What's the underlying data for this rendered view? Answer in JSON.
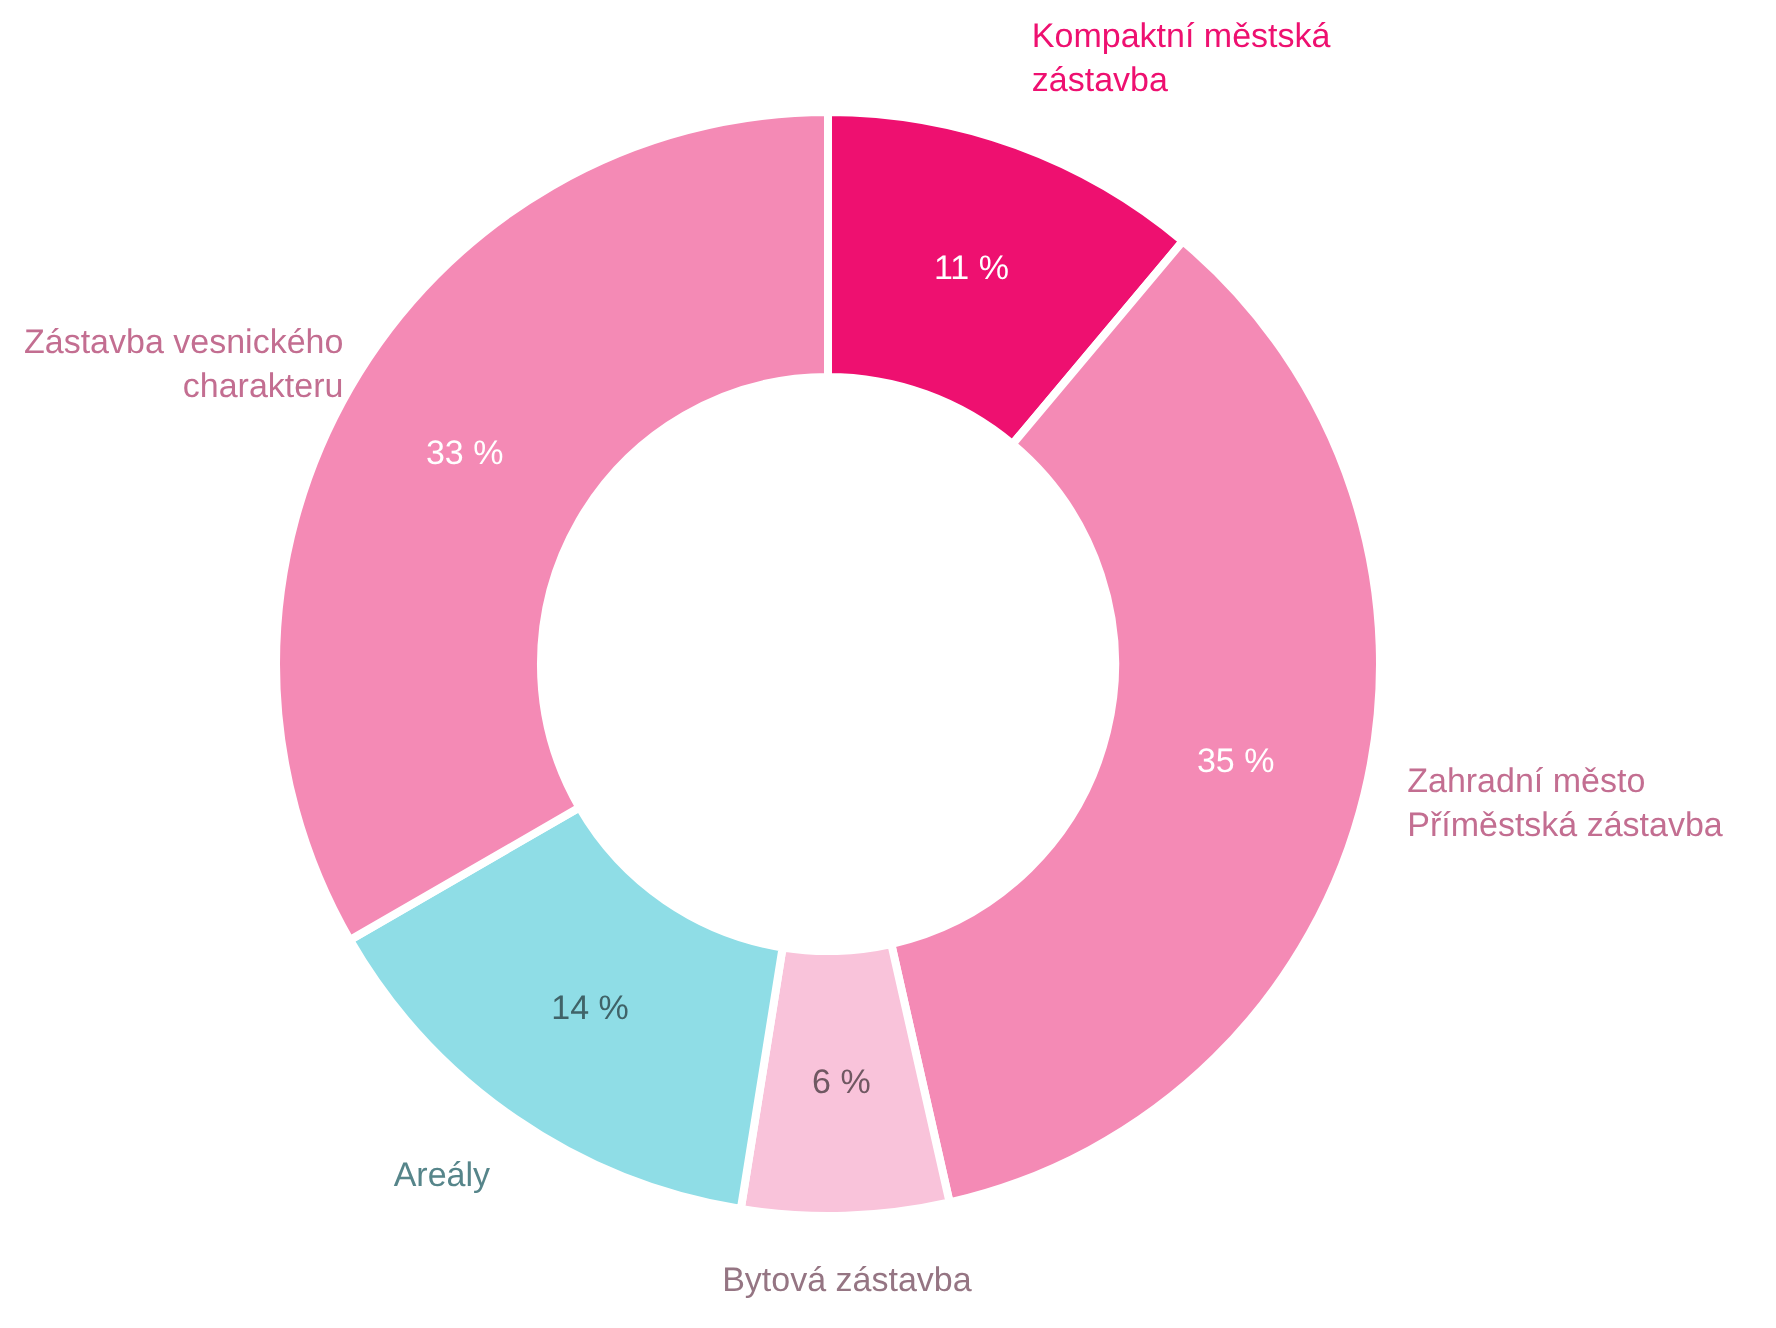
{
  "chart_data": {
    "type": "donut",
    "categories": [
      "Kompaktní městská zástavba",
      "Zahradní město Příměstská zástavba",
      "Bytová zástavba",
      "Areály",
      "Zástavba vesnického charakteru"
    ],
    "values": [
      11,
      35,
      6,
      14,
      33
    ],
    "value_labels": [
      "11 %",
      "35 %",
      "6 %",
      "14 %",
      "33 %"
    ],
    "colors": [
      "#ee1070",
      "#f48ab5",
      "#f9c3da",
      "#8fdde6",
      "#f48ab5"
    ],
    "legend": false
  }
}
